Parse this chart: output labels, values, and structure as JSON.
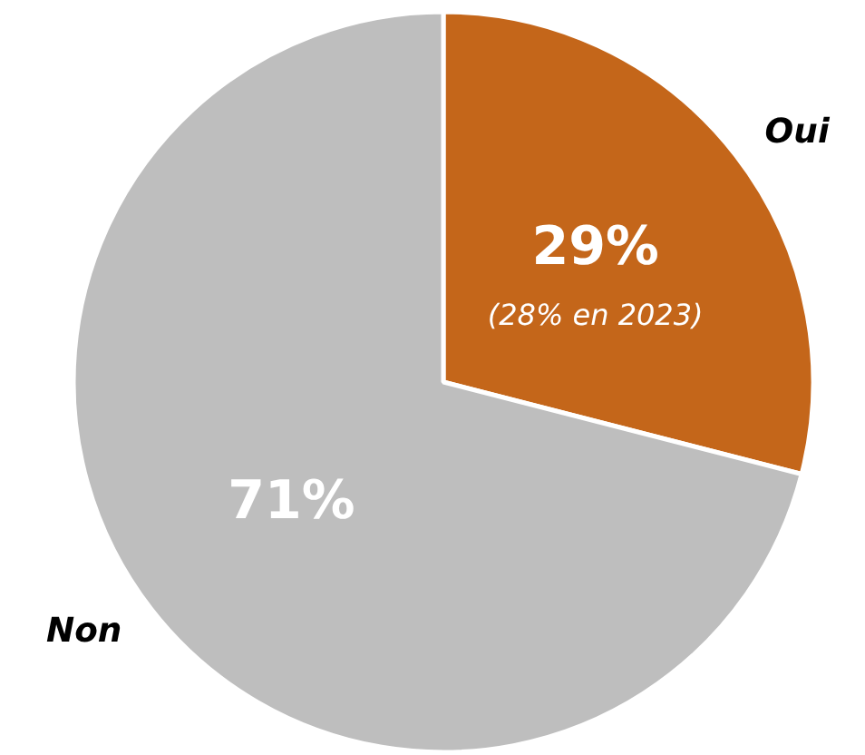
{
  "chart_data": {
    "type": "pie",
    "categories": [
      "Oui",
      "Non"
    ],
    "values": [
      29,
      71
    ],
    "colors": [
      "#c4661a",
      "#bebebe"
    ],
    "value_labels": [
      "29%",
      "71%"
    ],
    "annotations": [
      "(28% en 2023)"
    ]
  }
}
